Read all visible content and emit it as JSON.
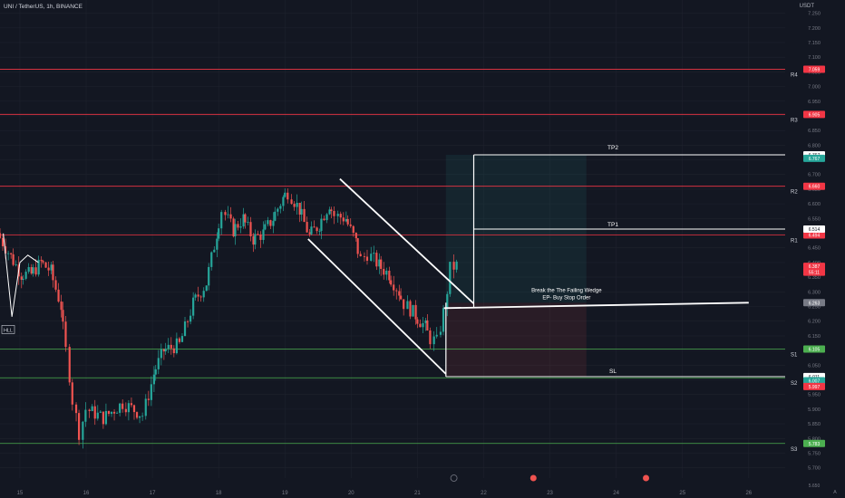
{
  "header": {
    "symbol_title": "UNI / TetherUS, 1h, BINANCE",
    "currency": "USDT"
  },
  "colors": {
    "background": "#131722",
    "grid": "#1e222d",
    "bull": "#26a69a",
    "bear": "#ef5350",
    "resistance": "#f23645",
    "support": "#4caf50",
    "text": "#b2b5be",
    "white": "#ffffff"
  },
  "chart_data": {
    "type": "candlestick",
    "y_axis": {
      "ymin": 5.665,
      "ymax": 7.295,
      "ticks": [
        "7.250",
        "7.200",
        "7.150",
        "7.100",
        "7.050",
        "7.000",
        "6.950",
        "6.900",
        "6.850",
        "6.800",
        "6.750",
        "6.700",
        "6.650",
        "6.600",
        "6.550",
        "6.500",
        "6.450",
        "6.400",
        "6.350",
        "6.300",
        "6.250",
        "6.200",
        "6.150",
        "6.100",
        "6.050",
        "6.000",
        "5.950",
        "5.900",
        "5.850",
        "5.800",
        "5.750",
        "5.700"
      ]
    },
    "x_axis": {
      "tick_labels": [
        "15",
        "16",
        "17",
        "18",
        "19",
        "20",
        "21",
        "22",
        "23",
        "24",
        "25",
        "26"
      ],
      "tick_positions_days": [
        0,
        1,
        2,
        3,
        4,
        5,
        6,
        7,
        8,
        9,
        10,
        11
      ],
      "xmin_day": -0.3,
      "xmax_day": 11.55
    },
    "levels": [
      {
        "name": "R4",
        "price": 7.059,
        "label": "7.059",
        "kind": "resistance"
      },
      {
        "name": "R3",
        "price": 6.905,
        "label": "6.905",
        "kind": "resistance"
      },
      {
        "name": "R2",
        "price": 6.66,
        "label": "6.660",
        "kind": "resistance"
      },
      {
        "name": "R1",
        "price": 6.494,
        "label": "6.494",
        "kind": "resistance"
      },
      {
        "name": "S1",
        "price": 6.105,
        "label": "6.105",
        "kind": "support"
      },
      {
        "name": "S2",
        "price": 6.007,
        "label": "6.007",
        "kind": "support"
      },
      {
        "name": "S3",
        "price": 5.783,
        "label": "5.783",
        "kind": "support"
      }
    ],
    "trade_setup": {
      "tp2": {
        "label": "TP2",
        "price": 6.767,
        "price_label": "6.767"
      },
      "tp1": {
        "label": "TP1",
        "price": 6.514,
        "price_label": "6.514"
      },
      "entry": {
        "price": 6.263,
        "price_label": "6.263"
      },
      "sl": {
        "label": "SL",
        "price": 6.011,
        "price_label": "6.011"
      },
      "entry_text_line1": "Break the The Failing Wedge",
      "entry_text_line2": "EP- Buy Stop Order"
    },
    "price_badges": [
      {
        "price": 6.767,
        "label": "6.767",
        "style": "white"
      },
      {
        "price": 6.755,
        "label": "6.767",
        "style": "green"
      },
      {
        "price": 6.514,
        "label": "6.514",
        "style": "white"
      },
      {
        "price": 6.387,
        "label": "6.387",
        "style": "red"
      },
      {
        "price": 6.367,
        "label": "55:11",
        "style": "red"
      },
      {
        "price": 6.263,
        "label": "6.263",
        "style": "gray"
      },
      {
        "price": 6.011,
        "label": "6.011",
        "style": "white"
      },
      {
        "price": 5.997,
        "label": "6.007",
        "style": "green"
      },
      {
        "price": 5.977,
        "label": "5.997",
        "style": "red"
      }
    ],
    "annotations": {
      "hll_label": "HLL",
      "bottom_axis_label": "5.650"
    },
    "swing_path": [
      [
        6.499,
        6.4
      ],
      [
        5.932,
        6.21
      ],
      [
        6.155,
        6.39
      ],
      [
        6.2,
        6.43
      ],
      [
        6.455,
        6.4
      ]
    ],
    "candles_anchor": [
      [
        -0.3,
        6.5
      ],
      [
        -0.1,
        6.42
      ],
      [
        0.05,
        6.36
      ],
      [
        0.2,
        6.36
      ],
      [
        0.35,
        6.4
      ],
      [
        0.5,
        6.37
      ],
      [
        0.65,
        6.25
      ],
      [
        0.75,
        6.1
      ],
      [
        0.85,
        5.93
      ],
      [
        0.95,
        5.82
      ],
      [
        1.05,
        5.9
      ],
      [
        1.3,
        5.87
      ],
      [
        1.6,
        5.92
      ],
      [
        1.9,
        5.88
      ],
      [
        2.05,
        6.02
      ],
      [
        2.2,
        6.1
      ],
      [
        2.45,
        6.12
      ],
      [
        2.65,
        6.26
      ],
      [
        2.85,
        6.33
      ],
      [
        3.0,
        6.5
      ],
      [
        3.1,
        6.58
      ],
      [
        3.25,
        6.51
      ],
      [
        3.4,
        6.55
      ],
      [
        3.55,
        6.48
      ],
      [
        3.7,
        6.5
      ],
      [
        3.85,
        6.55
      ],
      [
        4.0,
        6.62
      ],
      [
        4.1,
        6.64
      ],
      [
        4.25,
        6.58
      ],
      [
        4.4,
        6.49
      ],
      [
        4.55,
        6.53
      ],
      [
        4.7,
        6.6
      ],
      [
        4.8,
        6.56
      ],
      [
        4.95,
        6.55
      ],
      [
        5.1,
        6.47
      ],
      [
        5.2,
        6.41
      ],
      [
        5.3,
        6.43
      ],
      [
        5.45,
        6.39
      ],
      [
        5.6,
        6.36
      ],
      [
        5.75,
        6.3
      ],
      [
        5.85,
        6.26
      ],
      [
        6.0,
        6.22
      ],
      [
        6.15,
        6.18
      ],
      [
        6.25,
        6.14
      ],
      [
        6.35,
        6.13
      ],
      [
        6.45,
        6.23
      ],
      [
        6.55,
        6.38
      ],
      [
        6.62,
        6.39
      ]
    ]
  }
}
